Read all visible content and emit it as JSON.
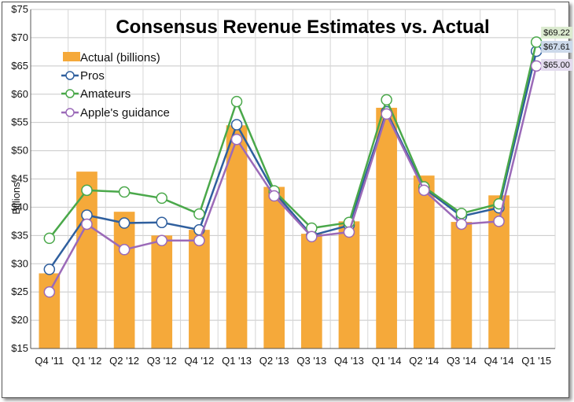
{
  "chart_data": {
    "type": "bar",
    "title": "Consensus Revenue Estimates vs. Actual",
    "ylabel": "Billions",
    "xlabel": "",
    "ylim": [
      15,
      75
    ],
    "yticks": [
      "$15",
      "$20",
      "$25",
      "$30",
      "$35",
      "$40",
      "$45",
      "$50",
      "$55",
      "$60",
      "$65",
      "$70",
      "$75"
    ],
    "ytick_values": [
      15,
      20,
      25,
      30,
      35,
      40,
      45,
      50,
      55,
      60,
      65,
      70,
      75
    ],
    "categories": [
      "Q4 '11",
      "Q1 '12",
      "Q2 '12",
      "Q3 '12",
      "Q4 '12",
      "Q1 '13",
      "Q2 '13",
      "Q3 '13",
      "Q4 '13",
      "Q1 '14",
      "Q2 '14",
      "Q3 '14",
      "Q4 '14",
      "Q1 '15"
    ],
    "grid": true,
    "legend_position": "top-left",
    "series": [
      {
        "name": "Actual (billions)",
        "kind": "bar",
        "color": "#f5a93a",
        "values": [
          28.3,
          46.3,
          39.2,
          35.0,
          36.0,
          54.5,
          43.6,
          35.3,
          37.5,
          57.6,
          45.6,
          37.4,
          42.1,
          null
        ]
      },
      {
        "name": "Pros",
        "kind": "line",
        "color": "#2f5f9e",
        "values": [
          29.0,
          38.6,
          37.2,
          37.3,
          36.0,
          54.6,
          42.7,
          35.0,
          36.8,
          56.9,
          43.4,
          38.4,
          39.9,
          67.61
        ]
      },
      {
        "name": "Amateurs",
        "kind": "line",
        "color": "#4aa84a",
        "values": [
          34.5,
          43.0,
          42.7,
          41.6,
          38.8,
          58.7,
          42.9,
          36.3,
          37.3,
          59.0,
          43.6,
          38.9,
          40.6,
          69.22
        ]
      },
      {
        "name": "Apple's guidance",
        "kind": "line",
        "color": "#9b6ab8",
        "values": [
          25.0,
          37.0,
          32.5,
          34.1,
          34.1,
          52.0,
          42.0,
          34.8,
          35.6,
          56.5,
          43.0,
          37.0,
          37.5,
          65.0
        ]
      }
    ],
    "end_labels": [
      {
        "text": "$69.22",
        "series": "Amateurs",
        "bg": "#dcebd0"
      },
      {
        "text": "$67.61",
        "series": "Pros",
        "bg": "#ccd9ea"
      },
      {
        "text": "$65.00",
        "series": "Apple's guidance",
        "bg": "#e3dbee"
      }
    ]
  }
}
